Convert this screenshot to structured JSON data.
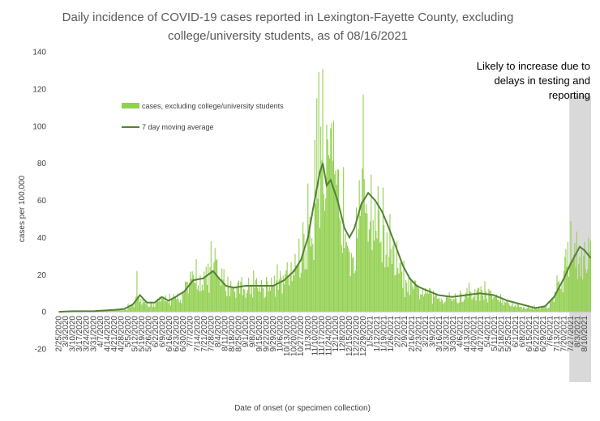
{
  "chart_data": {
    "type": "bar",
    "title": "Daily incidence of COVID-19 cases reported in Lexington-Fayette County, excluding college/university students, as of 08/16/2021",
    "title_lines": [
      "Daily incidence of COVID-19 cases reported in Lexington-Fayette County, excluding",
      "college/university students, as of 08/16/2021"
    ],
    "xlabel": "Date of onset (or specimen collection)",
    "ylabel": "cases per 100,000",
    "ylim": [
      -20,
      140
    ],
    "yticks": [
      -20,
      0,
      20,
      40,
      60,
      80,
      100,
      120,
      140
    ],
    "grid": false,
    "legend_position": "upper-left inside plot",
    "legend": [
      {
        "name": "cases, excluding college/university students",
        "kind": "bar",
        "color": "#92D050"
      },
      {
        "name": "7 day moving average",
        "kind": "line",
        "color": "#548235"
      }
    ],
    "shaded_region": {
      "from": "7/26/2021",
      "to": "8/16/2021",
      "color": "#d9d9d9"
    },
    "annotation_lines": [
      "Likely to increase due to",
      "delays in testing and",
      "reporting"
    ],
    "x_tick_labels": [
      "2/25/2020",
      "3/3/2020",
      "3/10/2020",
      "3/17/2020",
      "3/24/2020",
      "3/31/2020",
      "4/7/2020",
      "4/14/2020",
      "4/21/2020",
      "4/28/2020",
      "5/5/2020",
      "5/12/2020",
      "5/19/2020",
      "5/26/2020",
      "6/2/2020",
      "6/9/2020",
      "6/16/2020",
      "6/23/2020",
      "6/30/2020",
      "7/7/2020",
      "7/14/2020",
      "7/21/2020",
      "7/28/2020",
      "8/4/2020",
      "8/11/2020",
      "8/18/2020",
      "8/25/2020",
      "9/1/2020",
      "9/8/2020",
      "9/15/2020",
      "9/22/2020",
      "9/29/2020",
      "10/6/2020",
      "10/13/2020",
      "10/20/2020",
      "10/27/2020",
      "11/3/2020",
      "11/10/2020",
      "11/17/2020",
      "11/24/2020",
      "12/1/2020",
      "12/8/2020",
      "12/15/2020",
      "12/22/2020",
      "12/29/2020",
      "1/5/2021",
      "1/12/2021",
      "1/19/2021",
      "1/26/2021",
      "2/2/2021",
      "2/9/2021",
      "2/16/2021",
      "2/23/2021",
      "3/2/2021",
      "3/9/2021",
      "3/16/2021",
      "3/23/2021",
      "3/30/2021",
      "4/6/2021",
      "4/13/2021",
      "4/20/2021",
      "4/27/2021",
      "5/4/2021",
      "5/11/2021",
      "5/18/2021",
      "5/25/2021",
      "6/1/2021",
      "6/8/2021",
      "6/15/2021",
      "6/22/2021",
      "6/29/2021",
      "7/6/2021",
      "7/13/2021",
      "7/20/2021",
      "7/27/2021",
      "8/3/2021",
      "8/10/2021"
    ],
    "series": [
      {
        "name": "cases, excluding college/university students",
        "type": "bar",
        "frequency": "daily",
        "start": "2/25/2020",
        "end": "8/16/2021",
        "weekly_mean_values": [
          0,
          0.2,
          0.3,
          0.5,
          0.5,
          0.4,
          0.8,
          0.8,
          1,
          1.2,
          3,
          6,
          5,
          4,
          6,
          7,
          6,
          8,
          12,
          16,
          18,
          18,
          21,
          17,
          14,
          13,
          14,
          13,
          14,
          13,
          15,
          14,
          16,
          20,
          28,
          35,
          48,
          80,
          70,
          72,
          58,
          55,
          35,
          54,
          63,
          52,
          48,
          38,
          28,
          20,
          14,
          12,
          11,
          9,
          8,
          7,
          8,
          7,
          8,
          9,
          10,
          10,
          9,
          7,
          5,
          4,
          3,
          2,
          2,
          2,
          3,
          8,
          15,
          28,
          34,
          30
        ],
        "peak_values": [
          {
            "date": "11/14/2020",
            "value": 129
          },
          {
            "date": "11/12/2020",
            "value": 115
          },
          {
            "date": "12/29/2020",
            "value": 117
          },
          {
            "date": "7/28/2020",
            "value": 38
          },
          {
            "date": "5/14/2020",
            "value": 22
          }
        ]
      },
      {
        "name": "7 day moving average",
        "type": "line",
        "points": [
          {
            "date": "2/25/2020",
            "value": 0
          },
          {
            "date": "3/10/2020",
            "value": 0.3
          },
          {
            "date": "4/1/2020",
            "value": 0.4
          },
          {
            "date": "4/21/2020",
            "value": 1
          },
          {
            "date": "5/1/2020",
            "value": 1.5
          },
          {
            "date": "5/10/2020",
            "value": 4
          },
          {
            "date": "5/17/2020",
            "value": 9
          },
          {
            "date": "5/24/2020",
            "value": 5
          },
          {
            "date": "6/1/2020",
            "value": 5
          },
          {
            "date": "6/8/2020",
            "value": 8
          },
          {
            "date": "6/15/2020",
            "value": 6
          },
          {
            "date": "6/22/2020",
            "value": 8
          },
          {
            "date": "7/1/2020",
            "value": 11
          },
          {
            "date": "7/10/2020",
            "value": 17
          },
          {
            "date": "7/20/2020",
            "value": 18
          },
          {
            "date": "7/30/2020",
            "value": 22
          },
          {
            "date": "8/5/2020",
            "value": 18
          },
          {
            "date": "8/12/2020",
            "value": 14
          },
          {
            "date": "8/20/2020",
            "value": 13
          },
          {
            "date": "9/1/2020",
            "value": 14
          },
          {
            "date": "9/15/2020",
            "value": 14
          },
          {
            "date": "9/29/2020",
            "value": 14
          },
          {
            "date": "10/10/2020",
            "value": 17
          },
          {
            "date": "10/20/2020",
            "value": 22
          },
          {
            "date": "10/27/2020",
            "value": 28
          },
          {
            "date": "11/3/2020",
            "value": 40
          },
          {
            "date": "11/8/2020",
            "value": 55
          },
          {
            "date": "11/15/2020",
            "value": 75
          },
          {
            "date": "11/18/2020",
            "value": 80
          },
          {
            "date": "11/22/2020",
            "value": 68
          },
          {
            "date": "11/26/2020",
            "value": 71
          },
          {
            "date": "12/3/2020",
            "value": 60
          },
          {
            "date": "12/10/2020",
            "value": 45
          },
          {
            "date": "12/15/2020",
            "value": 40
          },
          {
            "date": "12/20/2020",
            "value": 45
          },
          {
            "date": "12/27/2020",
            "value": 58
          },
          {
            "date": "1/3/2021",
            "value": 64
          },
          {
            "date": "1/10/2021",
            "value": 60
          },
          {
            "date": "1/17/2021",
            "value": 54
          },
          {
            "date": "1/24/2021",
            "value": 45
          },
          {
            "date": "1/31/2021",
            "value": 35
          },
          {
            "date": "2/7/2021",
            "value": 25
          },
          {
            "date": "2/14/2021",
            "value": 18
          },
          {
            "date": "2/21/2021",
            "value": 14
          },
          {
            "date": "3/1/2021",
            "value": 12
          },
          {
            "date": "3/15/2021",
            "value": 9
          },
          {
            "date": "3/29/2021",
            "value": 8
          },
          {
            "date": "4/12/2021",
            "value": 9
          },
          {
            "date": "4/26/2021",
            "value": 10
          },
          {
            "date": "5/10/2021",
            "value": 9
          },
          {
            "date": "5/24/2021",
            "value": 6
          },
          {
            "date": "6/7/2021",
            "value": 4
          },
          {
            "date": "6/21/2021",
            "value": 2
          },
          {
            "date": "7/1/2021",
            "value": 3
          },
          {
            "date": "7/10/2021",
            "value": 8
          },
          {
            "date": "7/20/2021",
            "value": 18
          },
          {
            "date": "7/27/2021",
            "value": 26
          },
          {
            "date": "8/5/2021",
            "value": 35
          },
          {
            "date": "8/10/2021",
            "value": 33
          },
          {
            "date": "8/16/2021",
            "value": 29
          }
        ]
      }
    ]
  }
}
